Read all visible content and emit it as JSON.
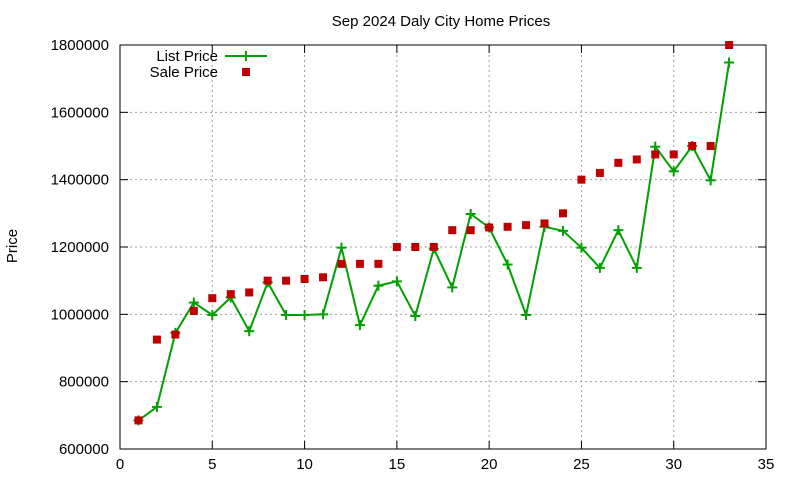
{
  "chart_data": {
    "type": "line",
    "title": "Sep 2024 Daly City Home Prices",
    "xlabel": "",
    "ylabel": "Price",
    "xlim": [
      0,
      35
    ],
    "ylim": [
      600000,
      1800000
    ],
    "x_ticks": [
      "0",
      "5",
      "10",
      "15",
      "20",
      "25",
      "30",
      "35"
    ],
    "y_ticks": [
      "600000",
      "800000",
      "1000000",
      "1200000",
      "1400000",
      "1600000",
      "1800000"
    ],
    "grid": true,
    "legend_position": "top-left",
    "series": [
      {
        "name": "List Price",
        "style": "linespoints",
        "marker": "plus",
        "color": "#00a000",
        "points": [
          [
            1,
            685000
          ],
          [
            2,
            725000
          ],
          [
            3,
            945000
          ],
          [
            4,
            1035000
          ],
          [
            5,
            998000
          ],
          [
            6,
            1050000
          ],
          [
            7,
            950000
          ],
          [
            8,
            1095000
          ],
          [
            9,
            998000
          ],
          [
            10,
            998000
          ],
          [
            11,
            1000000
          ],
          [
            12,
            1198000
          ],
          [
            13,
            968000
          ],
          [
            14,
            1085000
          ],
          [
            15,
            1098000
          ],
          [
            16,
            995000
          ],
          [
            17,
            1195000
          ],
          [
            18,
            1080000
          ],
          [
            19,
            1298000
          ],
          [
            20,
            1258000
          ],
          [
            21,
            1148000
          ],
          [
            22,
            998000
          ],
          [
            23,
            1260000
          ],
          [
            24,
            1248000
          ],
          [
            25,
            1198000
          ],
          [
            26,
            1138000
          ],
          [
            27,
            1250000
          ],
          [
            28,
            1138000
          ],
          [
            29,
            1498000
          ],
          [
            30,
            1425000
          ],
          [
            31,
            1500000
          ],
          [
            32,
            1398000
          ],
          [
            33,
            1748000
          ]
        ]
      },
      {
        "name": "Sale Price",
        "style": "points",
        "marker": "square",
        "color": "#c00000",
        "points": [
          [
            1,
            685000
          ],
          [
            2,
            925000
          ],
          [
            3,
            940000
          ],
          [
            4,
            1010000
          ],
          [
            5,
            1048000
          ],
          [
            6,
            1060000
          ],
          [
            7,
            1065000
          ],
          [
            8,
            1100000
          ],
          [
            9,
            1100000
          ],
          [
            10,
            1105000
          ],
          [
            11,
            1110000
          ],
          [
            12,
            1150000
          ],
          [
            13,
            1150000
          ],
          [
            14,
            1150000
          ],
          [
            15,
            1200000
          ],
          [
            16,
            1200000
          ],
          [
            17,
            1200000
          ],
          [
            18,
            1250000
          ],
          [
            19,
            1250000
          ],
          [
            20,
            1258000
          ],
          [
            21,
            1260000
          ],
          [
            22,
            1265000
          ],
          [
            23,
            1270000
          ],
          [
            24,
            1300000
          ],
          [
            25,
            1400000
          ],
          [
            26,
            1420000
          ],
          [
            27,
            1450000
          ],
          [
            28,
            1460000
          ],
          [
            29,
            1475000
          ],
          [
            30,
            1475000
          ],
          [
            31,
            1500000
          ],
          [
            32,
            1500000
          ],
          [
            33,
            1800000
          ]
        ]
      }
    ]
  }
}
